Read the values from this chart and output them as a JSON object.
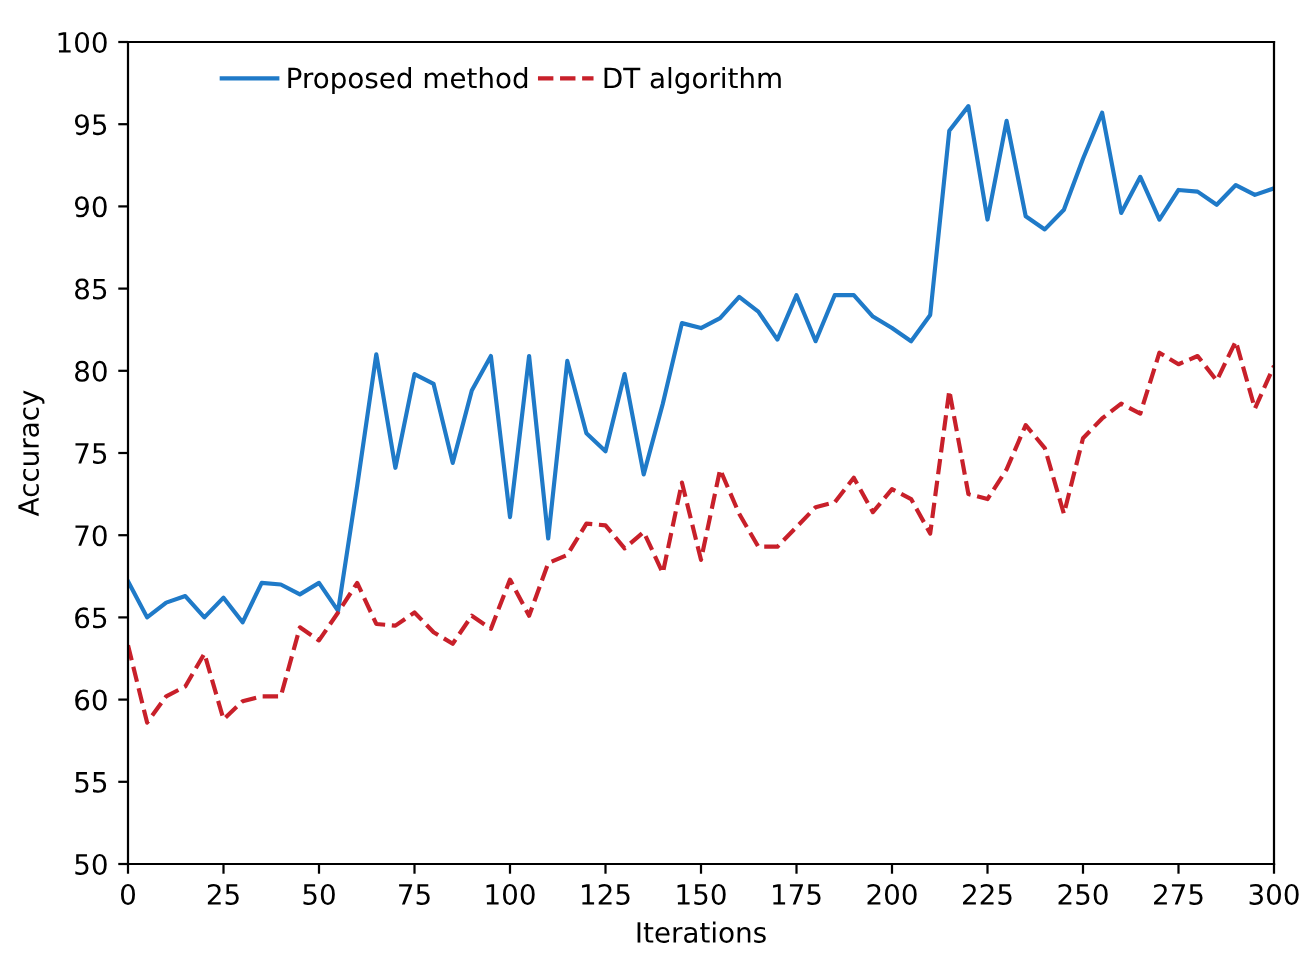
{
  "chart_data": {
    "type": "line",
    "xlabel": "Iterations",
    "ylabel": "Accuracy",
    "x": [
      0,
      5,
      10,
      15,
      20,
      25,
      30,
      35,
      40,
      45,
      50,
      55,
      60,
      65,
      70,
      75,
      80,
      85,
      90,
      95,
      100,
      105,
      110,
      115,
      120,
      125,
      130,
      135,
      140,
      145,
      150,
      155,
      160,
      165,
      170,
      175,
      180,
      185,
      190,
      195,
      200,
      205,
      210,
      215,
      220,
      225,
      230,
      235,
      240,
      245,
      250,
      255,
      260,
      265,
      270,
      275,
      280,
      285,
      290,
      295,
      300
    ],
    "series": [
      {
        "name": "Proposed method",
        "color": "#1f7ac8",
        "line_style": "solid",
        "values": [
          67.2,
          65,
          65.9,
          66.3,
          65,
          66.2,
          64.7,
          67.1,
          67,
          66.4,
          67.1,
          65.4,
          73,
          81,
          74.1,
          79.8,
          79.2,
          74.4,
          78.8,
          80.9,
          71.1,
          80.9,
          69.8,
          80.6,
          76.2,
          75.1,
          79.8,
          73.7,
          78,
          82.9,
          82.6,
          83.2,
          84.5,
          83.6,
          81.9,
          84.6,
          81.8,
          84.6,
          84.6,
          83.3,
          82.6,
          81.8,
          83.4,
          94.6,
          96.1,
          89.2,
          95.2,
          89.4,
          88.6,
          89.8,
          92.9,
          95.7,
          89.6,
          91.8,
          89.2,
          91,
          90.9,
          90.1,
          91.3,
          90.7,
          91.1
        ]
      },
      {
        "name": "DT algorithm",
        "color": "#c8202a",
        "line_style": "dashed",
        "values": [
          63.3,
          58.6,
          60.2,
          60.8,
          62.8,
          58.8,
          59.9,
          60.2,
          60.2,
          64.4,
          63.6,
          65.3,
          67.1,
          64.6,
          64.5,
          65.3,
          64.1,
          63.4,
          65.1,
          64.3,
          67.3,
          65.1,
          68.3,
          68.8,
          70.7,
          70.6,
          69.2,
          70.2,
          67.7,
          73.2,
          68.5,
          74,
          71.3,
          69.3,
          69.3,
          70.5,
          71.7,
          72,
          73.5,
          71.4,
          72.8,
          72.2,
          70.1,
          78.8,
          72.5,
          72.2,
          74,
          76.7,
          75.3,
          71.3,
          75.9,
          77.1,
          78,
          77.4,
          81.1,
          80.4,
          80.9,
          79.4,
          81.8,
          77.7,
          80.3
        ]
      }
    ],
    "xlim": [
      0,
      300
    ],
    "xticks": [
      0,
      25,
      50,
      75,
      100,
      125,
      150,
      175,
      200,
      225,
      250,
      275,
      300
    ],
    "ylim": [
      50,
      100
    ],
    "yticks": [
      50,
      55,
      60,
      65,
      70,
      75,
      80,
      85,
      90,
      95,
      100
    ],
    "grid": false,
    "legend": "top left",
    "marker": "none"
  }
}
